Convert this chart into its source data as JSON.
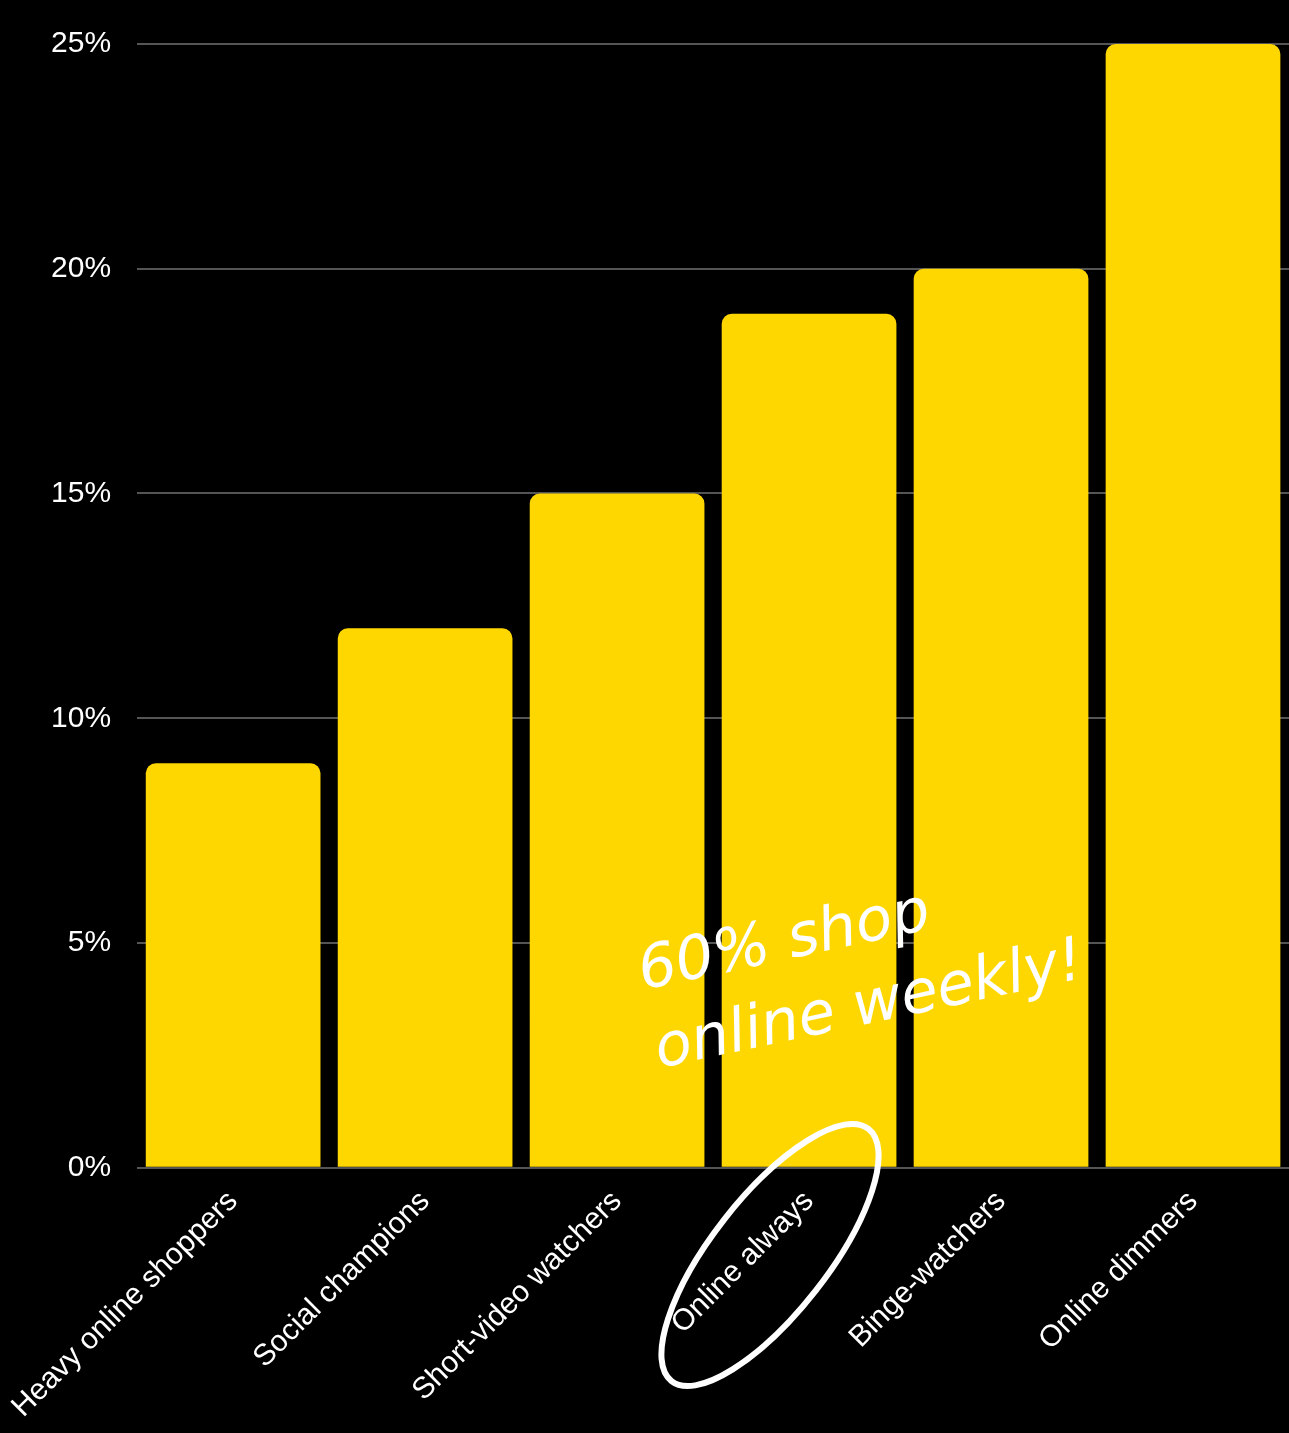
{
  "chart_data": {
    "type": "bar",
    "categories": [
      "Heavy online shoppers",
      "Social champions",
      "Short-video watchers",
      "Online always",
      "Binge-watchers",
      "Online dimmers"
    ],
    "values": [
      9,
      12,
      15,
      19,
      20,
      25
    ],
    "color": "#ffd700",
    "ylim": [
      0,
      25
    ],
    "yticks": [
      {
        "value": 0,
        "label": "0%"
      },
      {
        "value": 5,
        "label": "5%"
      },
      {
        "value": 10,
        "label": "10%"
      },
      {
        "value": 15,
        "label": "15%"
      },
      {
        "value": 20,
        "label": "20%"
      },
      {
        "value": 25,
        "label": "25%"
      }
    ],
    "grid": "y",
    "legend": false,
    "annotations": [
      "60% shop online weekly!"
    ]
  }
}
